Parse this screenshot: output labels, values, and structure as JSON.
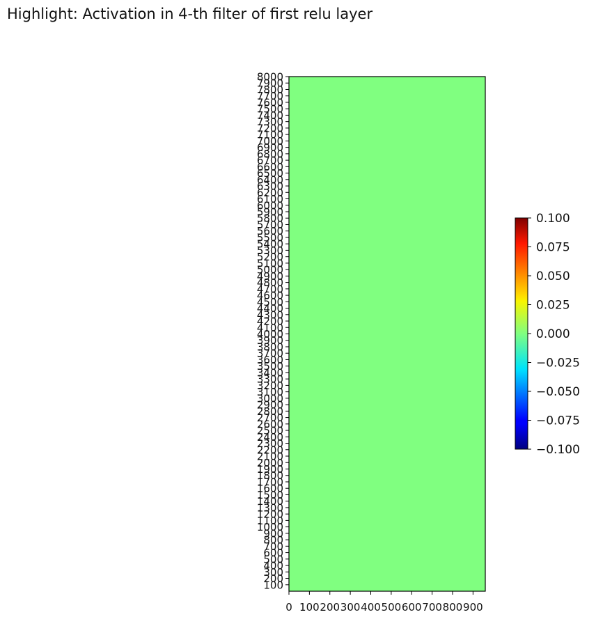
{
  "chart_data": {
    "type": "heatmap",
    "title": "Highlight: Activation in 4-th filter of first relu layer",
    "xlabel": "",
    "ylabel": "",
    "xlim": [
      0,
      960
    ],
    "ylim": [
      0,
      8000
    ],
    "x_ticks": [
      0,
      100,
      200,
      300,
      400,
      500,
      600,
      700,
      800,
      900
    ],
    "y_ticks": [
      100,
      200,
      300,
      400,
      500,
      600,
      700,
      800,
      900,
      1000,
      1100,
      1200,
      1300,
      1400,
      1500,
      1600,
      1700,
      1800,
      1900,
      2000,
      2100,
      2200,
      2300,
      2400,
      2500,
      2600,
      2700,
      2800,
      2900,
      3000,
      3100,
      3200,
      3300,
      3400,
      3500,
      3600,
      3700,
      3800,
      3900,
      4000,
      4100,
      4200,
      4300,
      4400,
      4500,
      4600,
      4700,
      4800,
      4900,
      5000,
      5100,
      5200,
      5300,
      5400,
      5500,
      5600,
      5700,
      5800,
      5900,
      6000,
      6100,
      6200,
      6300,
      6400,
      6500,
      6600,
      6700,
      6800,
      6900,
      7000,
      7100,
      7200,
      7300,
      7400,
      7500,
      7600,
      7700,
      7800,
      7900,
      8000
    ],
    "values": [
      [
        0.0
      ]
    ],
    "fill_color": "#80ff80",
    "colormap": "jet",
    "colorbar": {
      "min": -0.1,
      "max": 0.1,
      "ticks": [
        0.1,
        0.075,
        0.05,
        0.025,
        0.0,
        -0.025,
        -0.05,
        -0.075,
        -0.1
      ],
      "tick_labels": [
        "0.100",
        "0.075",
        "0.050",
        "0.025",
        "0.000",
        "−0.025",
        "−0.050",
        "−0.075",
        "−0.100"
      ]
    },
    "grid": false
  }
}
